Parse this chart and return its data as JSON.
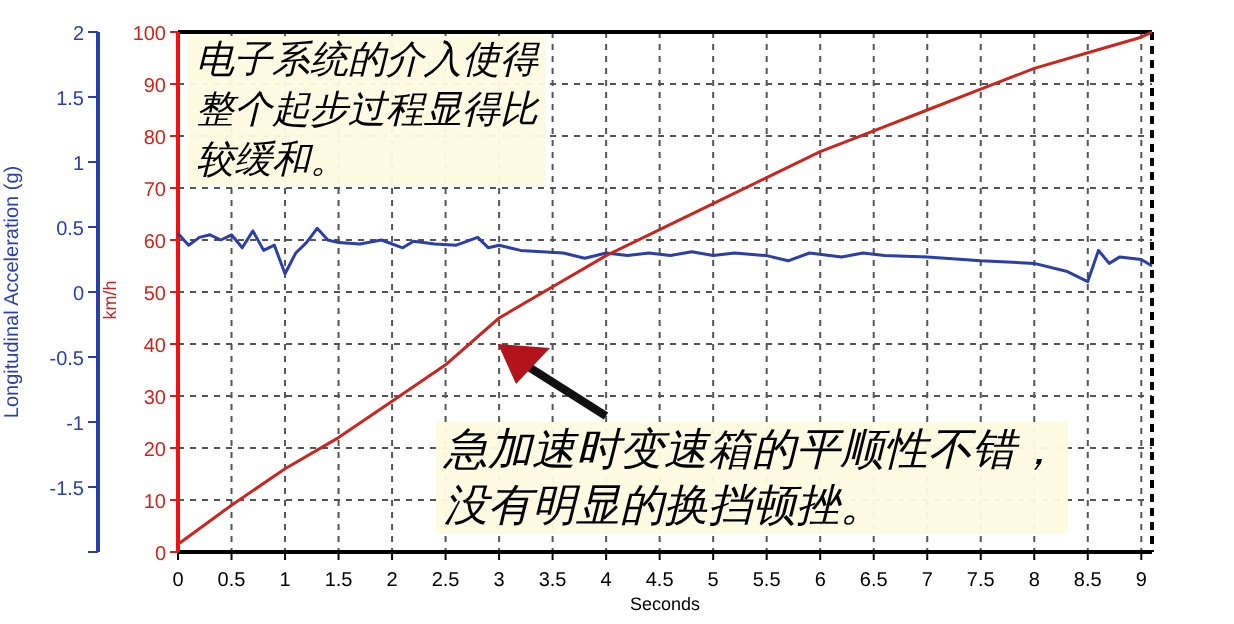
{
  "chart_data": {
    "type": "line",
    "xlabel": "Seconds",
    "ylabel": "Longitudinal Acceleration (g)",
    "y2label": "km/h",
    "xlim": [
      0,
      9.1
    ],
    "xticks": [
      0,
      0.5,
      1,
      1.5,
      2,
      2.5,
      3,
      3.5,
      4,
      4.5,
      5,
      5.5,
      6,
      6.5,
      7,
      7.5,
      8,
      8.5,
      9
    ],
    "ylim": [
      -2,
      2
    ],
    "yticks": [
      {
        "value": -2,
        "label": null
      },
      -1.5,
      -1,
      -0.5,
      0,
      0.5,
      1,
      1.5,
      2
    ],
    "y2lim": [
      0,
      100
    ],
    "y2ticks": [
      0,
      10,
      20,
      30,
      40,
      50,
      60,
      70,
      80,
      90,
      100
    ],
    "grid": true,
    "series": [
      {
        "color": "#2b3fa8",
        "x": [
          0,
          0.1,
          0.2,
          0.3,
          0.4,
          0.5,
          0.6,
          0.7,
          0.8,
          0.9,
          1.0,
          1.1,
          1.2,
          1.3,
          1.4,
          1.5,
          1.7,
          1.9,
          2.1,
          2.2,
          2.4,
          2.6,
          2.8,
          2.9,
          3.0,
          3.2,
          3.4,
          3.6,
          3.8,
          4.0,
          4.2,
          4.4,
          4.6,
          4.8,
          5.0,
          5.2,
          5.5,
          5.7,
          5.9,
          6.2,
          6.4,
          6.6,
          7.0,
          7.5,
          8.0,
          8.3,
          8.5,
          8.6,
          8.7,
          8.8,
          9.0,
          9.1
        ],
        "values": [
          0.45,
          0.36,
          0.42,
          0.44,
          0.4,
          0.44,
          0.34,
          0.47,
          0.32,
          0.36,
          0.14,
          0.3,
          0.38,
          0.49,
          0.4,
          0.38,
          0.37,
          0.4,
          0.34,
          0.39,
          0.37,
          0.36,
          0.42,
          0.34,
          0.36,
          0.32,
          0.31,
          0.3,
          0.26,
          0.3,
          0.28,
          0.3,
          0.28,
          0.31,
          0.28,
          0.3,
          0.28,
          0.24,
          0.3,
          0.27,
          0.3,
          0.28,
          0.27,
          0.24,
          0.22,
          0.16,
          0.08,
          0.32,
          0.22,
          0.27,
          0.25,
          0.2
        ]
      },
      {
        "color": "#c8261e",
        "axis": "y2",
        "x": [
          0,
          0.5,
          1,
          1.5,
          2,
          2.5,
          3,
          3.5,
          4,
          4.5,
          5,
          5.5,
          6,
          6.5,
          7,
          7.5,
          8,
          8.5,
          9,
          9.1
        ],
        "values": [
          1.5,
          9,
          16,
          22,
          29,
          36,
          45,
          51,
          57,
          62,
          67,
          72,
          77,
          81,
          85,
          89,
          93,
          96,
          99,
          100
        ]
      }
    ],
    "annotations": [
      "电子系统的介入使得整个起步过程显得比较缓和。",
      "急加速时变速箱的平顺性不错，没有明显的换挡顿挫。"
    ]
  }
}
